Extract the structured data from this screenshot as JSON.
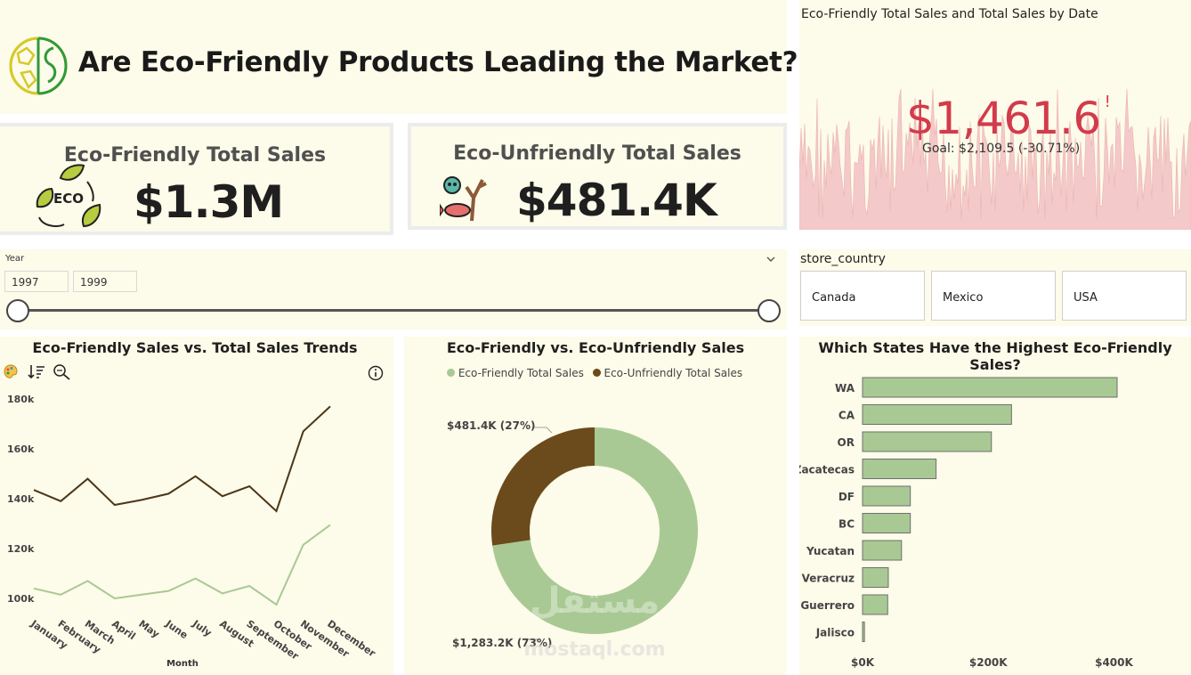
{
  "header": {
    "title": "Are Eco-Friendly Products Leading the Market?",
    "logo_icon": "eco-globe-icon"
  },
  "cards": {
    "eco": {
      "label": "Eco-Friendly Total Sales",
      "value": "$1.3M",
      "icon": "eco-leaves-icon"
    },
    "uneco": {
      "label": "Eco-Unfriendly Total Sales",
      "value": "$481.4K",
      "icon": "pollution-icon"
    }
  },
  "kpi": {
    "title": "Eco-Friendly Total Sales and Total Sales by Date",
    "value": "$1,461.6",
    "value_suffix": "!",
    "goal": "Goal: $2,109.5 (-30.71%)"
  },
  "year_slicer": {
    "label": "Year",
    "from": "1997",
    "to": "1999",
    "chevron_icon": "chevron-down-icon"
  },
  "country_slicer": {
    "label": "store_country",
    "options": [
      "Canada",
      "Mexico",
      "USA"
    ]
  },
  "watermark": {
    "brand": "مستقل",
    "url": "mostaql.com"
  },
  "colors": {
    "eco": "#a9c994",
    "uneco": "#6b4a1c",
    "line_dark": "#4b3619",
    "line_light": "#a9c994",
    "kpi_red": "#d23b4b",
    "panel": "#fdfbe9"
  },
  "chart_data": [
    {
      "type": "line",
      "title": "Eco-Friendly Sales vs. Total Sales Trends",
      "xlabel": "Month",
      "ylabel": "",
      "categories": [
        "January",
        "February",
        "March",
        "April",
        "May",
        "June",
        "July",
        "August",
        "September",
        "October",
        "November",
        "December"
      ],
      "series": [
        {
          "name": "Total Sales",
          "values": [
            143.5,
            139,
            148,
            137.5,
            139.5,
            142,
            149,
            141,
            145,
            135,
            167,
            177
          ]
        },
        {
          "name": "Eco-Friendly Sales",
          "values": [
            104,
            101.5,
            107,
            100,
            101.5,
            103,
            108,
            102,
            105,
            97.5,
            121.5,
            129.5
          ]
        }
      ],
      "yticks": [
        "100k",
        "120k",
        "140k",
        "160k",
        "180k"
      ],
      "ylim": [
        95,
        185
      ]
    },
    {
      "type": "pie",
      "title": "Eco-Friendly vs. Eco-Unfriendly Sales",
      "legend": [
        "Eco-Friendly Total Sales",
        "Eco-Unfriendly Total Sales"
      ],
      "values": [
        1283.2,
        481.4
      ],
      "labels": [
        "$1,283.2K (73%)",
        "$481.4K (27%)"
      ]
    },
    {
      "type": "bar",
      "orientation": "horizontal",
      "title": "Which States Have the Highest Eco-Friendly Sales?",
      "categories": [
        "WA",
        "CA",
        "OR",
        "Zacatecas",
        "DF",
        "BC",
        "Yucatan",
        "Veracruz",
        "Guerrero",
        "Jalisco"
      ],
      "values": [
        405,
        237,
        205,
        117,
        76,
        76,
        62,
        41,
        40,
        3
      ],
      "xticks": [
        "$0K",
        "$200K",
        "$400K"
      ],
      "xlim": [
        0,
        440
      ]
    }
  ]
}
